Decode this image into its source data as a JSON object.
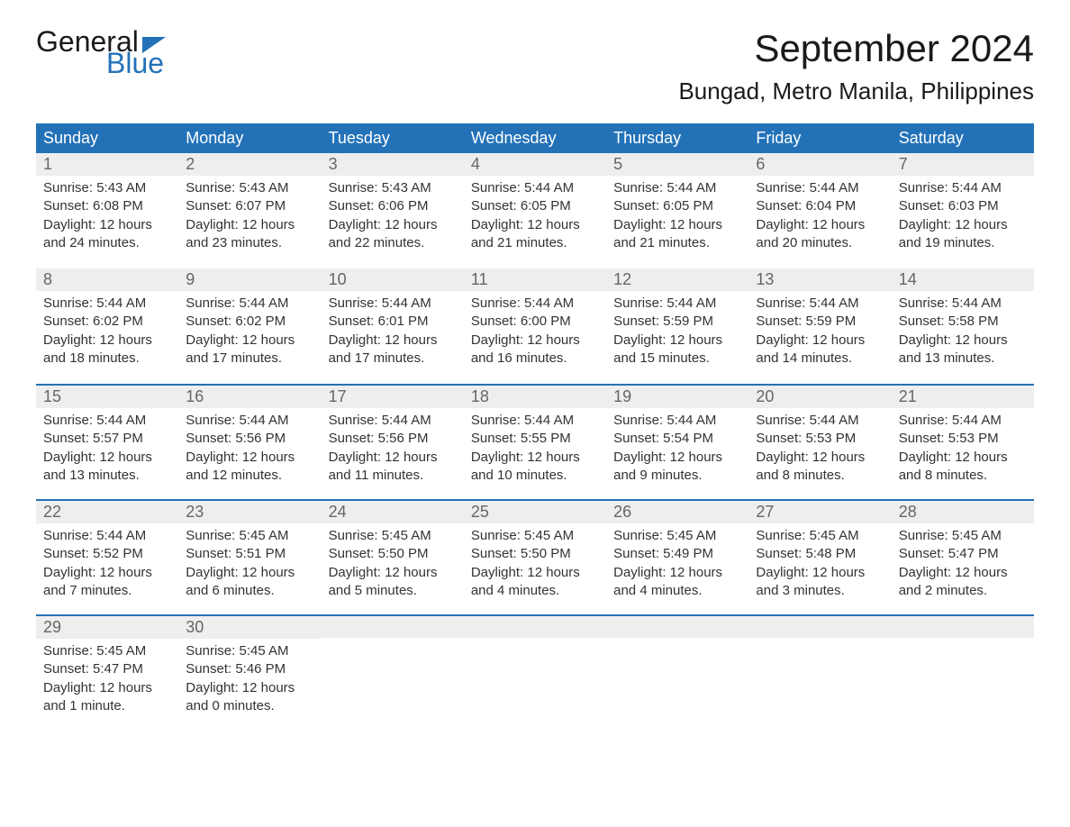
{
  "logo": {
    "text1": "General",
    "text2": "Blue"
  },
  "title": "September 2024",
  "location": "Bungad, Metro Manila, Philippines",
  "colors": {
    "header_bg": "#2372b8",
    "header_text": "#ffffff",
    "daynum_bg": "#eeeeee",
    "daynum_text": "#666666",
    "body_text": "#333333",
    "border": "#2372b8"
  },
  "weekdays": [
    "Sunday",
    "Monday",
    "Tuesday",
    "Wednesday",
    "Thursday",
    "Friday",
    "Saturday"
  ],
  "weeks": [
    [
      {
        "day": "1",
        "sunrise": "Sunrise: 5:43 AM",
        "sunset": "Sunset: 6:08 PM",
        "daylight1": "Daylight: 12 hours",
        "daylight2": "and 24 minutes."
      },
      {
        "day": "2",
        "sunrise": "Sunrise: 5:43 AM",
        "sunset": "Sunset: 6:07 PM",
        "daylight1": "Daylight: 12 hours",
        "daylight2": "and 23 minutes."
      },
      {
        "day": "3",
        "sunrise": "Sunrise: 5:43 AM",
        "sunset": "Sunset: 6:06 PM",
        "daylight1": "Daylight: 12 hours",
        "daylight2": "and 22 minutes."
      },
      {
        "day": "4",
        "sunrise": "Sunrise: 5:44 AM",
        "sunset": "Sunset: 6:05 PM",
        "daylight1": "Daylight: 12 hours",
        "daylight2": "and 21 minutes."
      },
      {
        "day": "5",
        "sunrise": "Sunrise: 5:44 AM",
        "sunset": "Sunset: 6:05 PM",
        "daylight1": "Daylight: 12 hours",
        "daylight2": "and 21 minutes."
      },
      {
        "day": "6",
        "sunrise": "Sunrise: 5:44 AM",
        "sunset": "Sunset: 6:04 PM",
        "daylight1": "Daylight: 12 hours",
        "daylight2": "and 20 minutes."
      },
      {
        "day": "7",
        "sunrise": "Sunrise: 5:44 AM",
        "sunset": "Sunset: 6:03 PM",
        "daylight1": "Daylight: 12 hours",
        "daylight2": "and 19 minutes."
      }
    ],
    [
      {
        "day": "8",
        "sunrise": "Sunrise: 5:44 AM",
        "sunset": "Sunset: 6:02 PM",
        "daylight1": "Daylight: 12 hours",
        "daylight2": "and 18 minutes."
      },
      {
        "day": "9",
        "sunrise": "Sunrise: 5:44 AM",
        "sunset": "Sunset: 6:02 PM",
        "daylight1": "Daylight: 12 hours",
        "daylight2": "and 17 minutes."
      },
      {
        "day": "10",
        "sunrise": "Sunrise: 5:44 AM",
        "sunset": "Sunset: 6:01 PM",
        "daylight1": "Daylight: 12 hours",
        "daylight2": "and 17 minutes."
      },
      {
        "day": "11",
        "sunrise": "Sunrise: 5:44 AM",
        "sunset": "Sunset: 6:00 PM",
        "daylight1": "Daylight: 12 hours",
        "daylight2": "and 16 minutes."
      },
      {
        "day": "12",
        "sunrise": "Sunrise: 5:44 AM",
        "sunset": "Sunset: 5:59 PM",
        "daylight1": "Daylight: 12 hours",
        "daylight2": "and 15 minutes."
      },
      {
        "day": "13",
        "sunrise": "Sunrise: 5:44 AM",
        "sunset": "Sunset: 5:59 PM",
        "daylight1": "Daylight: 12 hours",
        "daylight2": "and 14 minutes."
      },
      {
        "day": "14",
        "sunrise": "Sunrise: 5:44 AM",
        "sunset": "Sunset: 5:58 PM",
        "daylight1": "Daylight: 12 hours",
        "daylight2": "and 13 minutes."
      }
    ],
    [
      {
        "day": "15",
        "sunrise": "Sunrise: 5:44 AM",
        "sunset": "Sunset: 5:57 PM",
        "daylight1": "Daylight: 12 hours",
        "daylight2": "and 13 minutes."
      },
      {
        "day": "16",
        "sunrise": "Sunrise: 5:44 AM",
        "sunset": "Sunset: 5:56 PM",
        "daylight1": "Daylight: 12 hours",
        "daylight2": "and 12 minutes."
      },
      {
        "day": "17",
        "sunrise": "Sunrise: 5:44 AM",
        "sunset": "Sunset: 5:56 PM",
        "daylight1": "Daylight: 12 hours",
        "daylight2": "and 11 minutes."
      },
      {
        "day": "18",
        "sunrise": "Sunrise: 5:44 AM",
        "sunset": "Sunset: 5:55 PM",
        "daylight1": "Daylight: 12 hours",
        "daylight2": "and 10 minutes."
      },
      {
        "day": "19",
        "sunrise": "Sunrise: 5:44 AM",
        "sunset": "Sunset: 5:54 PM",
        "daylight1": "Daylight: 12 hours",
        "daylight2": "and 9 minutes."
      },
      {
        "day": "20",
        "sunrise": "Sunrise: 5:44 AM",
        "sunset": "Sunset: 5:53 PM",
        "daylight1": "Daylight: 12 hours",
        "daylight2": "and 8 minutes."
      },
      {
        "day": "21",
        "sunrise": "Sunrise: 5:44 AM",
        "sunset": "Sunset: 5:53 PM",
        "daylight1": "Daylight: 12 hours",
        "daylight2": "and 8 minutes."
      }
    ],
    [
      {
        "day": "22",
        "sunrise": "Sunrise: 5:44 AM",
        "sunset": "Sunset: 5:52 PM",
        "daylight1": "Daylight: 12 hours",
        "daylight2": "and 7 minutes."
      },
      {
        "day": "23",
        "sunrise": "Sunrise: 5:45 AM",
        "sunset": "Sunset: 5:51 PM",
        "daylight1": "Daylight: 12 hours",
        "daylight2": "and 6 minutes."
      },
      {
        "day": "24",
        "sunrise": "Sunrise: 5:45 AM",
        "sunset": "Sunset: 5:50 PM",
        "daylight1": "Daylight: 12 hours",
        "daylight2": "and 5 minutes."
      },
      {
        "day": "25",
        "sunrise": "Sunrise: 5:45 AM",
        "sunset": "Sunset: 5:50 PM",
        "daylight1": "Daylight: 12 hours",
        "daylight2": "and 4 minutes."
      },
      {
        "day": "26",
        "sunrise": "Sunrise: 5:45 AM",
        "sunset": "Sunset: 5:49 PM",
        "daylight1": "Daylight: 12 hours",
        "daylight2": "and 4 minutes."
      },
      {
        "day": "27",
        "sunrise": "Sunrise: 5:45 AM",
        "sunset": "Sunset: 5:48 PM",
        "daylight1": "Daylight: 12 hours",
        "daylight2": "and 3 minutes."
      },
      {
        "day": "28",
        "sunrise": "Sunrise: 5:45 AM",
        "sunset": "Sunset: 5:47 PM",
        "daylight1": "Daylight: 12 hours",
        "daylight2": "and 2 minutes."
      }
    ],
    [
      {
        "day": "29",
        "sunrise": "Sunrise: 5:45 AM",
        "sunset": "Sunset: 5:47 PM",
        "daylight1": "Daylight: 12 hours",
        "daylight2": "and 1 minute."
      },
      {
        "day": "30",
        "sunrise": "Sunrise: 5:45 AM",
        "sunset": "Sunset: 5:46 PM",
        "daylight1": "Daylight: 12 hours",
        "daylight2": "and 0 minutes."
      },
      {
        "empty": true
      },
      {
        "empty": true
      },
      {
        "empty": true
      },
      {
        "empty": true
      },
      {
        "empty": true
      }
    ]
  ]
}
